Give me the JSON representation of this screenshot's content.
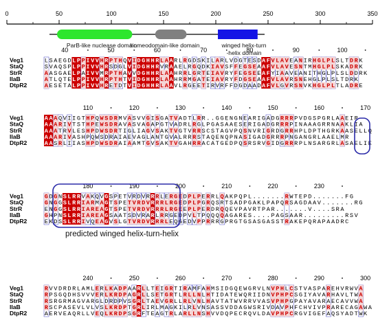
{
  "scale": {
    "ticks": [
      "0",
      "50",
      "100",
      "150",
      "200",
      "250",
      "300",
      "350"
    ]
  },
  "domains": [
    {
      "label": "ParB-like nuclease domain",
      "color": "#2ee62e",
      "start": 48,
      "end": 120
    },
    {
      "label": "homeodomain-like domain",
      "color": "#808080",
      "start": 142,
      "end": 172
    },
    {
      "label": "winged helix-turn\n-helix domain",
      "color": "#1414e6",
      "start": 202,
      "end": 240
    }
  ],
  "legend_label": "predicted winged helix-turn-helix",
  "colors": {
    "red": "#cc0000",
    "pale": "#f5d5d5",
    "box": "#4040c0",
    "accent_circle": "#2a2aa8"
  },
  "blocks": [
    {
      "ruler": [
        "40",
        "50",
        "60",
        "70",
        "80",
        "90",
        "100"
      ],
      "rows": [
        {
          "name": "Veg1",
          "seq": "LSAEGDLPPIVVHRPTHQVIDGHHRLAARLRGDSKILARLVDGTESDAFVLAVEANIRHGLPLSLTDRK"
        },
        {
          "name": "StaQ",
          "seq": "SVAQSPLPPIVVHRSDGLVIDGHHRVRAAELRGQDKIAVSFFEGSEAAFVLAVESNTMHGLPLSKADRK"
        },
        {
          "name": "StrR",
          "seq": "AASGAELPAIVVMRPTHAVVDGHHRLAAHRRLGRTEIAVRYFEGSEEAFYIAAVEANITHGLPLSLDDRK"
        },
        {
          "name": "IlaB",
          "seq": "ATLQTELPPIVVHRPTHTVIDGHHRLAAHRRMGATEIAVRYFDGSEAAFVLAVRSNEHGLPLSLTDRK"
        },
        {
          "name": "DtpR2",
          "seq": "AESETALPPIVVHRETDTVIDGHHRLAAVLRGEETIRVRFFDGDAADAFVLGVRSNVKHGLPLTLADRE"
        }
      ]
    },
    {
      "ruler": [
        "110",
        "120",
        "130",
        "140",
        "150",
        "160",
        "170"
      ],
      "rows": [
        {
          "name": "Veg1",
          "seq": "AAAQVIIGTHPQWSDRMVASVVGISGATVADTLRR..GGENGNEARIGADGRRRPVDGSPGRLAAEIR"
        },
        {
          "name": "StaQ",
          "seq": "AAARIVTSTHPEWSDRAVASVAGAPGTVADRLRGLPGASAAESERIGADGRRRPINAAAGRRNAAKLIA"
        },
        {
          "name": "StrR",
          "seq": "AAATRVLESHPDWSDRTIGLIAGVSAKTVGTVRRSCSTAGVPQSNVRIGRDGRRHPLDPTHGRKAASELLQ"
        },
        {
          "name": "IlaB",
          "seq": "AAARIVASHPQWSDRAIAEVAGLANTGVALRRRSTAQENQPNASIGADGRRRPNGANGRLAAELMR"
        },
        {
          "name": "DtpR2",
          "seq": "AASRLIIASHPDWSDRAIAAMTGVSAKTVGAHRRACATGEDPQSRSRVGIDGRRRPLNSARGRLASAELIE"
        }
      ]
    },
    {
      "ruler": [
        "180",
        "190",
        "200",
        "210",
        "220",
        "230"
      ],
      "rows": [
        {
          "name": "Veg1",
          "seq": "GDGNSLRRVAKQVGSPETVRDVRRRLERGEDPLPERRLQAKPQPL.......RWTEPD.......FG"
        },
        {
          "name": "StaQ",
          "seq": "GNGGSLRRIARMAGTSPETVRDVRRRLRGEDPLPGRQSRTSADPGAKLPAPQRSAGDAAV.......RG"
        },
        {
          "name": "StrR",
          "seq": "ENGGSLRRIAREAGTSPETVRDVRRRLRGEEPLPERDRQQEVPAVRTPAR.......V....SRA"
        },
        {
          "name": "IlaB",
          "seq": "GHPNSLRRIAREAGSAATSDVRARLRRGEDPVLTPQQQQAGARES....PAGSAAR.........RSV"
        },
        {
          "name": "DtpR2",
          "seq": "EKDSSLRRIVQEAGVSLGTVRDVRRRLEQGEDVPPRRRGPRGTGSASGASSTRAKEPQRAPAADRC"
        }
      ]
    },
    {
      "ruler": [
        "240",
        "250",
        "260",
        "270",
        "280",
        "290",
        "300"
      ],
      "rows": [
        {
          "name": "Veg1",
          "seq": "RVVDRDRLAMLERLKADPAARLLTEIGRTIRAMFAHMSIDGQEWGRVLNVPHLCSTVASPAREHVRWVA"
        },
        {
          "name": "StaQ",
          "seq": "RPSGQDHSVVVERLKRDPAGRLLSETGRTLRLLNLHTIDATEWQRIIDNVPHPCSGIYAVARHAVLTWA"
        },
        {
          "name": "StrR",
          "seq": "RSRGRMAGVARGLDRDPVSGRLTAEVGRLLRLVNLHAVTATWVRRVVASVPHPGPAYAVARAECAVVWA"
        },
        {
          "name": "IlaB",
          "seq": "RSCPASEVLVLVSLKRDPTGRLIRLMAGKILRLVNSASSVDDAGWSRIVDAVPHFCHVIVPRARECAGAWA"
        },
        {
          "name": "DtpR2",
          "seq": "AERVEAQRLLVEQLKRDPSGRFTEAGTRLARLLNSHVVDQPECRQVLDAVPHPCRGVIGEFAQSYADTWK"
        }
      ]
    }
  ]
}
